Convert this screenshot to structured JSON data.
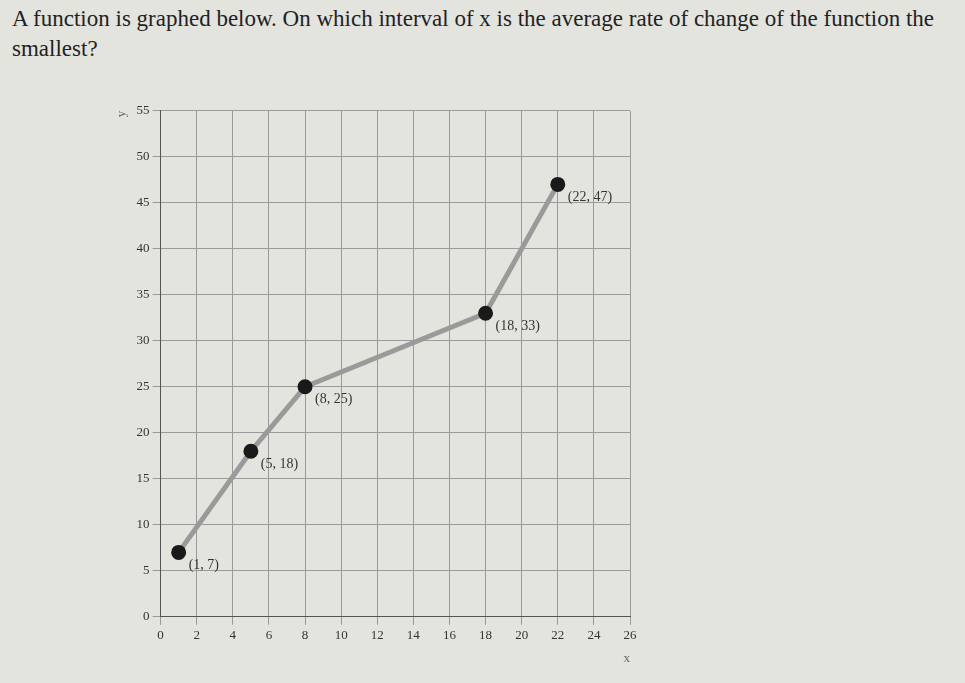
{
  "chart_data": {
    "type": "line",
    "title": "A function is graphed below. On which interval of x is the average rate of change of the function the smallest?",
    "x": [
      1,
      5,
      8,
      18,
      22
    ],
    "values": [
      7,
      18,
      25,
      33,
      47
    ],
    "point_labels": [
      "(1, 7)",
      "(5, 18)",
      "(8, 25)",
      "(18, 33)",
      "(22, 47)"
    ],
    "xlabel": "x",
    "ylabel": "y",
    "xlim": [
      0,
      26
    ],
    "ylim": [
      0,
      55
    ],
    "xticks": [
      0,
      2,
      4,
      6,
      8,
      10,
      12,
      14,
      16,
      18,
      20,
      22,
      24,
      26
    ],
    "yticks": [
      0,
      5,
      10,
      15,
      20,
      25,
      30,
      35,
      40,
      45,
      50,
      55
    ],
    "grid": true,
    "color": "#9a9a9a",
    "marker": "circle"
  }
}
